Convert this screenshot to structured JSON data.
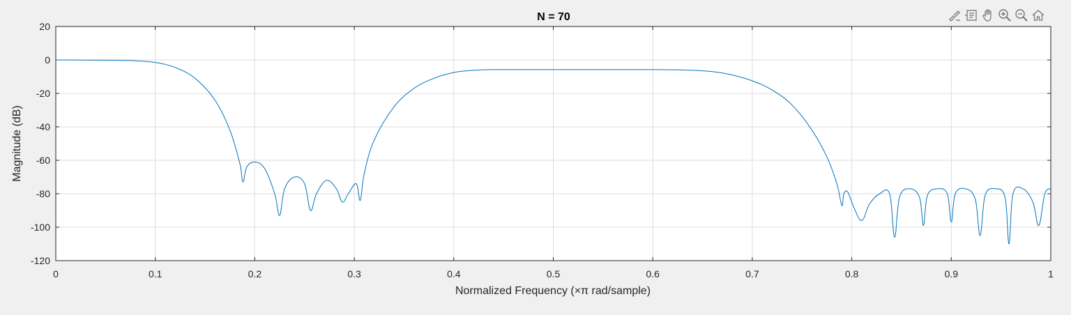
{
  "toolbar": {
    "icons": [
      "brush-icon",
      "data-tips-icon",
      "pan-icon",
      "zoom-in-icon",
      "zoom-out-icon",
      "home-icon"
    ]
  },
  "colors": {
    "line": "#0072BD",
    "grid": "#dcdcdc",
    "axis": "#262626",
    "plot_bg": "#ffffff",
    "figure_bg": "#f0f0f0"
  },
  "chart_data": {
    "type": "line",
    "title": "N = 70",
    "xlabel": "Normalized Frequency  (×π rad/sample)",
    "ylabel": "Magnitude (dB)",
    "xlim": [
      0,
      1
    ],
    "ylim": [
      -120,
      20
    ],
    "grid": true,
    "x_ticks": [
      0,
      0.1,
      0.2,
      0.3,
      0.4,
      0.5,
      0.6,
      0.7,
      0.8,
      0.9,
      1
    ],
    "x_tick_labels": [
      "0",
      "0.1",
      "0.2",
      "0.3",
      "0.4",
      "0.5",
      "0.6",
      "0.7",
      "0.8",
      "0.9",
      "1"
    ],
    "y_ticks": [
      20,
      0,
      -20,
      -40,
      -60,
      -80,
      -100,
      -120
    ],
    "y_tick_labels": [
      "20",
      "0",
      "-20",
      "-40",
      "-60",
      "-80",
      "-100",
      "-120"
    ],
    "series": [
      {
        "x": [
          0,
          0.06,
          0.08,
          0.1,
          0.12,
          0.14,
          0.16,
          0.175,
          0.185,
          0.188,
          0.192,
          0.2,
          0.21,
          0.22,
          0.225,
          0.23,
          0.24,
          0.25,
          0.256,
          0.262,
          0.272,
          0.282,
          0.288,
          0.294,
          0.302,
          0.306,
          0.31,
          0.32,
          0.34,
          0.36,
          0.38,
          0.4,
          0.42,
          0.44,
          0.5,
          0.6,
          0.64,
          0.66,
          0.68,
          0.7,
          0.72,
          0.74,
          0.76,
          0.775,
          0.785,
          0.79,
          0.792,
          0.796,
          0.802,
          0.81,
          0.818,
          0.828,
          0.838,
          0.843,
          0.848,
          0.858,
          0.868,
          0.872,
          0.876,
          0.886,
          0.896,
          0.9,
          0.904,
          0.914,
          0.924,
          0.929,
          0.934,
          0.944,
          0.954,
          0.958,
          0.962,
          0.972,
          0.982,
          0.988,
          0.994,
          1.0
        ],
        "y": [
          0,
          -0.2,
          -0.5,
          -1.5,
          -4.5,
          -11,
          -24,
          -42,
          -62,
          -73,
          -64,
          -61,
          -65,
          -80,
          -93,
          -77,
          -70,
          -74,
          -90,
          -80,
          -72,
          -77,
          -85,
          -80,
          -74,
          -84,
          -68,
          -48,
          -28,
          -17,
          -11,
          -7.5,
          -6.2,
          -5.8,
          -5.8,
          -5.8,
          -6.2,
          -7,
          -9,
          -12.5,
          -18,
          -27,
          -42,
          -58,
          -74,
          -87,
          -80,
          -79,
          -88,
          -96,
          -86,
          -80,
          -80,
          -106,
          -82,
          -77,
          -82,
          -99,
          -81,
          -77,
          -80,
          -97,
          -80,
          -77,
          -83,
          -105,
          -81,
          -77,
          -82,
          -110,
          -80,
          -77,
          -85,
          -99,
          -80,
          -77
        ]
      }
    ]
  }
}
